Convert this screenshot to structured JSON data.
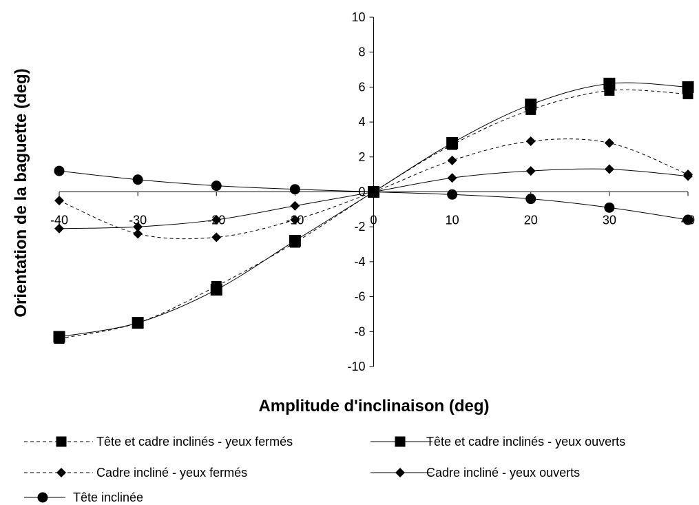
{
  "chart_data": {
    "type": "line",
    "title": "",
    "xlabel": "Amplitude d'inclinaison (deg)",
    "ylabel": "Orientation de la baguette (deg)",
    "xlim": [
      -40,
      40
    ],
    "ylim": [
      -10,
      10
    ],
    "x_ticks": [
      "-40",
      "-30",
      "-20",
      "-10",
      "0",
      "10",
      "20",
      "30",
      "40"
    ],
    "y_ticks": [
      "10",
      "8",
      "6",
      "4",
      "2",
      "0",
      "-2",
      "-4",
      "-6",
      "-8",
      "-10"
    ],
    "grid": false,
    "legend_position": "bottom",
    "x": [
      -40,
      -30,
      -20,
      -10,
      0,
      10,
      20,
      30,
      40
    ],
    "series": [
      {
        "name": "Tête et cadre inclinés - yeux fermés",
        "marker": "square",
        "dash": "dashed",
        "values": [
          -8.4,
          -7.5,
          -5.4,
          -2.9,
          0,
          2.7,
          4.7,
          5.8,
          5.6
        ]
      },
      {
        "name": "Tête et cadre inclinés - yeux ouverts",
        "marker": "square",
        "dash": "solid",
        "values": [
          -8.3,
          -7.5,
          -5.6,
          -2.8,
          0,
          2.8,
          5.0,
          6.2,
          6.0
        ]
      },
      {
        "name": "Cadre incliné - yeux fermés",
        "marker": "diamond",
        "dash": "dashed",
        "values": [
          -0.5,
          -2.4,
          -2.6,
          -1.6,
          0,
          1.8,
          2.9,
          2.8,
          1.0
        ]
      },
      {
        "name": "Cadre incliné - yeux ouverts",
        "marker": "diamond",
        "dash": "solid",
        "values": [
          -2.1,
          -2.0,
          -1.6,
          -0.8,
          0,
          0.8,
          1.2,
          1.3,
          0.9
        ]
      },
      {
        "name": "Tête inclinée",
        "marker": "circle",
        "dash": "solid",
        "values": [
          1.2,
          0.7,
          0.35,
          0.15,
          0,
          -0.15,
          -0.4,
          -0.9,
          -1.6
        ]
      }
    ]
  }
}
